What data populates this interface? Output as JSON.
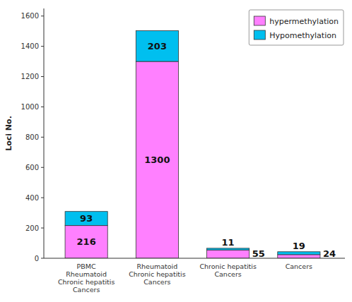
{
  "chart_data": {
    "type": "bar",
    "stacked": true,
    "data_labels": true,
    "grid": false,
    "legend": "upper right",
    "ylabel": "Loci No.",
    "categories": [
      "PBMC\nRheumatoid\nChronic hepatitis\nCancers",
      "Rheumatoid\nChronic hepatitis\nCancers",
      "Chronic hepatitis\nCancers",
      "Cancers"
    ],
    "series": [
      {
        "name": "hypermethylation",
        "color": "#FF80FF",
        "values": [
          216,
          1300,
          55,
          24
        ]
      },
      {
        "name": "Hypomethylation",
        "color": "#00BFEF",
        "values": [
          93,
          203,
          11,
          19
        ]
      }
    ],
    "ylim": [
      0,
      1650
    ],
    "yticks": [
      0,
      200,
      400,
      600,
      800,
      1000,
      1200,
      1400,
      1600
    ]
  }
}
